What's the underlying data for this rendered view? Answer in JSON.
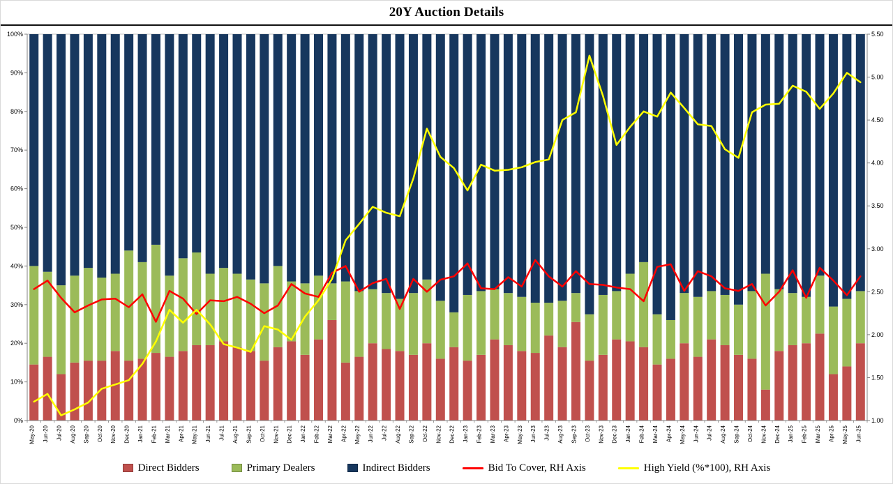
{
  "title": "20Y Auction Details",
  "legend": [
    {
      "label": "Direct Bidders",
      "color": "#C0504D",
      "type": "box"
    },
    {
      "label": "Primary Dealers",
      "color": "#9BBB59",
      "type": "box"
    },
    {
      "label": "Indirect Bidders",
      "color": "#17375E",
      "type": "box"
    },
    {
      "label": "Bid To Cover, RH Axis",
      "color": "#FF0000",
      "type": "line"
    },
    {
      "label": "High Yield (%*100), RH Axis",
      "color": "#FFFF00",
      "type": "line"
    }
  ],
  "colors": {
    "direct": "#C0504D",
    "primary": "#9BBB59",
    "indirect": "#17375E",
    "bid_to_cover": "#FF0000",
    "high_yield": "#FFFF00",
    "plot_border": "#BFBFBF",
    "axis": "#808080"
  },
  "chart_data": {
    "type": "bar",
    "stacked": true,
    "title": "20Y Auction Details",
    "xlabel": "",
    "ylabel_left": "",
    "ylabel_right": "",
    "left_axis": {
      "min": 0,
      "max": 100,
      "step": 10,
      "ticks": [
        "0%",
        "10%",
        "20%",
        "30%",
        "40%",
        "50%",
        "60%",
        "70%",
        "80%",
        "90%",
        "100%"
      ]
    },
    "right_axis": {
      "min": 1.0,
      "max": 5.5,
      "step": 0.5,
      "ticks": [
        "1.00",
        "1.50",
        "2.00",
        "2.50",
        "3.00",
        "3.50",
        "4.00",
        "4.50",
        "5.00",
        "5.50"
      ]
    },
    "grid": false,
    "legend_position": "bottom",
    "categories": [
      "May-20",
      "Jun-20",
      "Jul-20",
      "Aug-20",
      "Sep-20",
      "Oct-20",
      "Nov-20",
      "Dec-20",
      "Jan-21",
      "Feb-21",
      "Mar-21",
      "Apr-21",
      "May-21",
      "Jun-21",
      "Jul-21",
      "Aug-21",
      "Sep-21",
      "Oct-21",
      "Nov-21",
      "Dec-21",
      "Jan-22",
      "Feb-22",
      "Mar-22",
      "Apr-22",
      "May-22",
      "Jun-22",
      "Jul-22",
      "Aug-22",
      "Sep-22",
      "Oct-22",
      "Nov-22",
      "Dec-22",
      "Jan-23",
      "Feb-23",
      "Mar-23",
      "Apr-23",
      "May-23",
      "Jun-23",
      "Jul-23",
      "Aug-23",
      "Sep-23",
      "Oct-23",
      "Nov-23",
      "Dec-23",
      "Jan-24",
      "Feb-24",
      "Mar-24",
      "Apr-24",
      "May-24",
      "Jun-24",
      "Jul-24",
      "Aug-24",
      "Sep-24",
      "Oct-24",
      "Nov-24",
      "Dec-24",
      "Jan-25",
      "Feb-25",
      "Mar-25",
      "Apr-25",
      "May-25",
      "Jun-25"
    ],
    "series": [
      {
        "name": "Direct Bidders",
        "kind": "bar",
        "axis": "left",
        "color": "#C0504D",
        "values": [
          14.5,
          16.5,
          12,
          15,
          15.5,
          15.5,
          18,
          15.5,
          16,
          17.5,
          16.5,
          18,
          19.5,
          19.5,
          20.5,
          19,
          18,
          15.5,
          19,
          20.5,
          17,
          21,
          26,
          15,
          16.5,
          20,
          18.5,
          18,
          17,
          20,
          16,
          19,
          15.5,
          17,
          21,
          19.5,
          18,
          17.5,
          22,
          19,
          25.5,
          15.5,
          17,
          21,
          20.5,
          19,
          14.5,
          16,
          20,
          16.5,
          21,
          19.5,
          17,
          16,
          8,
          18,
          19.5,
          20,
          22.5,
          12,
          14,
          20
        ]
      },
      {
        "name": "Primary Dealers",
        "kind": "bar",
        "axis": "left",
        "color": "#9BBB59",
        "values": [
          25.5,
          22,
          23,
          22.5,
          24,
          21.5,
          20,
          28.5,
          25,
          28,
          21,
          24,
          24,
          18.5,
          19,
          19,
          18.5,
          20,
          21,
          15.5,
          18.5,
          16.5,
          9.5,
          21,
          17,
          14,
          14.5,
          13.5,
          16,
          16.5,
          15,
          9,
          17,
          16.5,
          13,
          13.5,
          14,
          13,
          8.5,
          12,
          7.5,
          12,
          15.5,
          12.5,
          17.5,
          22,
          13,
          10,
          13,
          15.5,
          12.5,
          13,
          13,
          17.5,
          30,
          16,
          13.5,
          12,
          15,
          17.5,
          17.5,
          13.5
        ]
      },
      {
        "name": "Indirect Bidders",
        "kind": "bar",
        "axis": "left",
        "color": "#17375E",
        "values": [
          60,
          61.5,
          65,
          62.5,
          60.5,
          63,
          62,
          56,
          59,
          54.5,
          62.5,
          58,
          56.5,
          62,
          60.5,
          62,
          63.5,
          64.5,
          60,
          64,
          64.5,
          62.5,
          64.5,
          64,
          66.5,
          66,
          67,
          68.5,
          67,
          63.5,
          69,
          72,
          67.5,
          66.5,
          66,
          67,
          68,
          69.5,
          69.5,
          69,
          67,
          72.5,
          67.5,
          66.5,
          62,
          59,
          72.5,
          74,
          67,
          68,
          66.5,
          67.5,
          70,
          66.5,
          62,
          66,
          67,
          68,
          62.5,
          70.5,
          68.5,
          66.5
        ]
      },
      {
        "name": "Bid To Cover, RH Axis",
        "kind": "line",
        "axis": "right",
        "color": "#FF0000",
        "values": [
          2.53,
          2.63,
          2.43,
          2.26,
          2.34,
          2.41,
          2.42,
          2.32,
          2.47,
          2.15,
          2.51,
          2.42,
          2.24,
          2.4,
          2.39,
          2.44,
          2.36,
          2.25,
          2.34,
          2.59,
          2.48,
          2.44,
          2.72,
          2.8,
          2.5,
          2.6,
          2.65,
          2.3,
          2.65,
          2.5,
          2.64,
          2.68,
          2.83,
          2.54,
          2.53,
          2.67,
          2.56,
          2.87,
          2.68,
          2.56,
          2.74,
          2.59,
          2.58,
          2.55,
          2.53,
          2.39,
          2.79,
          2.82,
          2.51,
          2.74,
          2.68,
          2.54,
          2.51,
          2.59,
          2.34,
          2.5,
          2.75,
          2.43,
          2.78,
          2.63,
          2.46,
          2.68
        ]
      },
      {
        "name": "High Yield (%*100), RH Axis",
        "kind": "line",
        "axis": "right",
        "color": "#FFFF00",
        "values": [
          1.22,
          1.31,
          1.06,
          1.13,
          1.21,
          1.37,
          1.42,
          1.47,
          1.66,
          1.92,
          2.29,
          2.14,
          2.29,
          2.12,
          1.89,
          1.85,
          1.8,
          2.1,
          2.06,
          1.94,
          2.21,
          2.4,
          2.65,
          3.1,
          3.29,
          3.49,
          3.42,
          3.38,
          3.82,
          4.4,
          4.07,
          3.94,
          3.68,
          3.98,
          3.91,
          3.92,
          3.95,
          4.01,
          4.04,
          4.5,
          4.59,
          5.25,
          4.78,
          4.21,
          4.42,
          4.6,
          4.54,
          4.82,
          4.64,
          4.45,
          4.43,
          4.16,
          4.06,
          4.59,
          4.68,
          4.69,
          4.9,
          4.83,
          4.63,
          4.81,
          5.05,
          4.94
        ]
      }
    ]
  }
}
